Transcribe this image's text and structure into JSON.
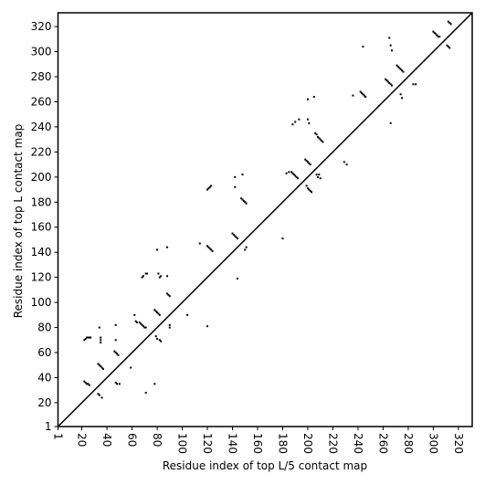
{
  "chart_data": {
    "type": "scatter",
    "x_label": "Residue index of top L/5 contact map",
    "y_label": "Residue index of top L contact map",
    "color": "#000000",
    "xlim": [
      1,
      331
    ],
    "ylim": [
      1,
      331
    ],
    "xticks": [
      1,
      20,
      40,
      60,
      80,
      100,
      120,
      140,
      160,
      180,
      200,
      220,
      240,
      260,
      280,
      300,
      320
    ],
    "yticks": [
      1,
      20,
      40,
      60,
      80,
      100,
      120,
      140,
      160,
      180,
      200,
      220,
      240,
      260,
      280,
      300,
      320
    ],
    "x": [
      22,
      23,
      24,
      25,
      26,
      27,
      35,
      35,
      35,
      34,
      22,
      23,
      24,
      25,
      26,
      33,
      34,
      36,
      33,
      34,
      35,
      36,
      37,
      46,
      47,
      48,
      49,
      47,
      47,
      47,
      48,
      50,
      59,
      62,
      63,
      64,
      66,
      67,
      68,
      69,
      70,
      71,
      68,
      69,
      71,
      72,
      71,
      78,
      79,
      80,
      81,
      82,
      79,
      80,
      82,
      83,
      78,
      80,
      81,
      82,
      83,
      88,
      89,
      90,
      88,
      88,
      90,
      90,
      104,
      114,
      120,
      121,
      122,
      123,
      120,
      120,
      121,
      122,
      123,
      124,
      140,
      141,
      142,
      143,
      144,
      142,
      142,
      144,
      147,
      148,
      149,
      150,
      151,
      148,
      150,
      151,
      180,
      183,
      185,
      187,
      188,
      189,
      190,
      191,
      192,
      188,
      190,
      193,
      198,
      199,
      200,
      201,
      202,
      199,
      200,
      201,
      202,
      203,
      200,
      200,
      201,
      205,
      206,
      207,
      208,
      209,
      210,
      211,
      212,
      207,
      208,
      209,
      210,
      229,
      231,
      236,
      242,
      243,
      244,
      245,
      246,
      244,
      262,
      263,
      264,
      265,
      266,
      267,
      265,
      266,
      267,
      266,
      271,
      272,
      273,
      274,
      275,
      276,
      274,
      275,
      284,
      286,
      300,
      301,
      302,
      303,
      304,
      305,
      311,
      312,
      313,
      312,
      313,
      314
    ],
    "y": [
      70,
      71,
      72,
      72,
      72,
      72,
      68,
      70,
      72,
      80,
      37,
      36,
      35,
      35,
      34,
      27,
      26,
      24,
      51,
      50,
      49,
      48,
      47,
      61,
      60,
      59,
      58,
      70,
      82,
      36,
      35,
      35,
      48,
      90,
      85,
      84,
      84,
      83,
      82,
      81,
      80,
      80,
      120,
      121,
      123,
      123,
      28,
      94,
      93,
      92,
      91,
      90,
      73,
      71,
      70,
      69,
      35,
      142,
      123,
      120,
      121,
      107,
      106,
      105,
      121,
      144,
      80,
      82,
      90,
      147,
      190,
      191,
      192,
      193,
      81,
      145,
      144,
      143,
      142,
      141,
      155,
      154,
      153,
      152,
      151,
      200,
      192,
      119,
      183,
      182,
      181,
      180,
      179,
      202,
      142,
      144,
      151,
      203,
      204,
      204,
      203,
      202,
      201,
      200,
      199,
      242,
      244,
      246,
      214,
      213,
      212,
      211,
      210,
      193,
      191,
      190,
      189,
      188,
      262,
      246,
      243,
      264,
      235,
      234,
      232,
      231,
      230,
      229,
      228,
      202,
      200,
      202,
      199,
      212,
      210,
      265,
      268,
      267,
      266,
      265,
      264,
      304,
      278,
      277,
      276,
      275,
      274,
      273,
      311,
      305,
      301,
      243,
      289,
      288,
      287,
      286,
      285,
      284,
      266,
      263,
      274,
      274,
      316,
      315,
      314,
      313,
      312,
      312,
      305,
      304,
      303,
      324,
      323,
      322
    ]
  }
}
